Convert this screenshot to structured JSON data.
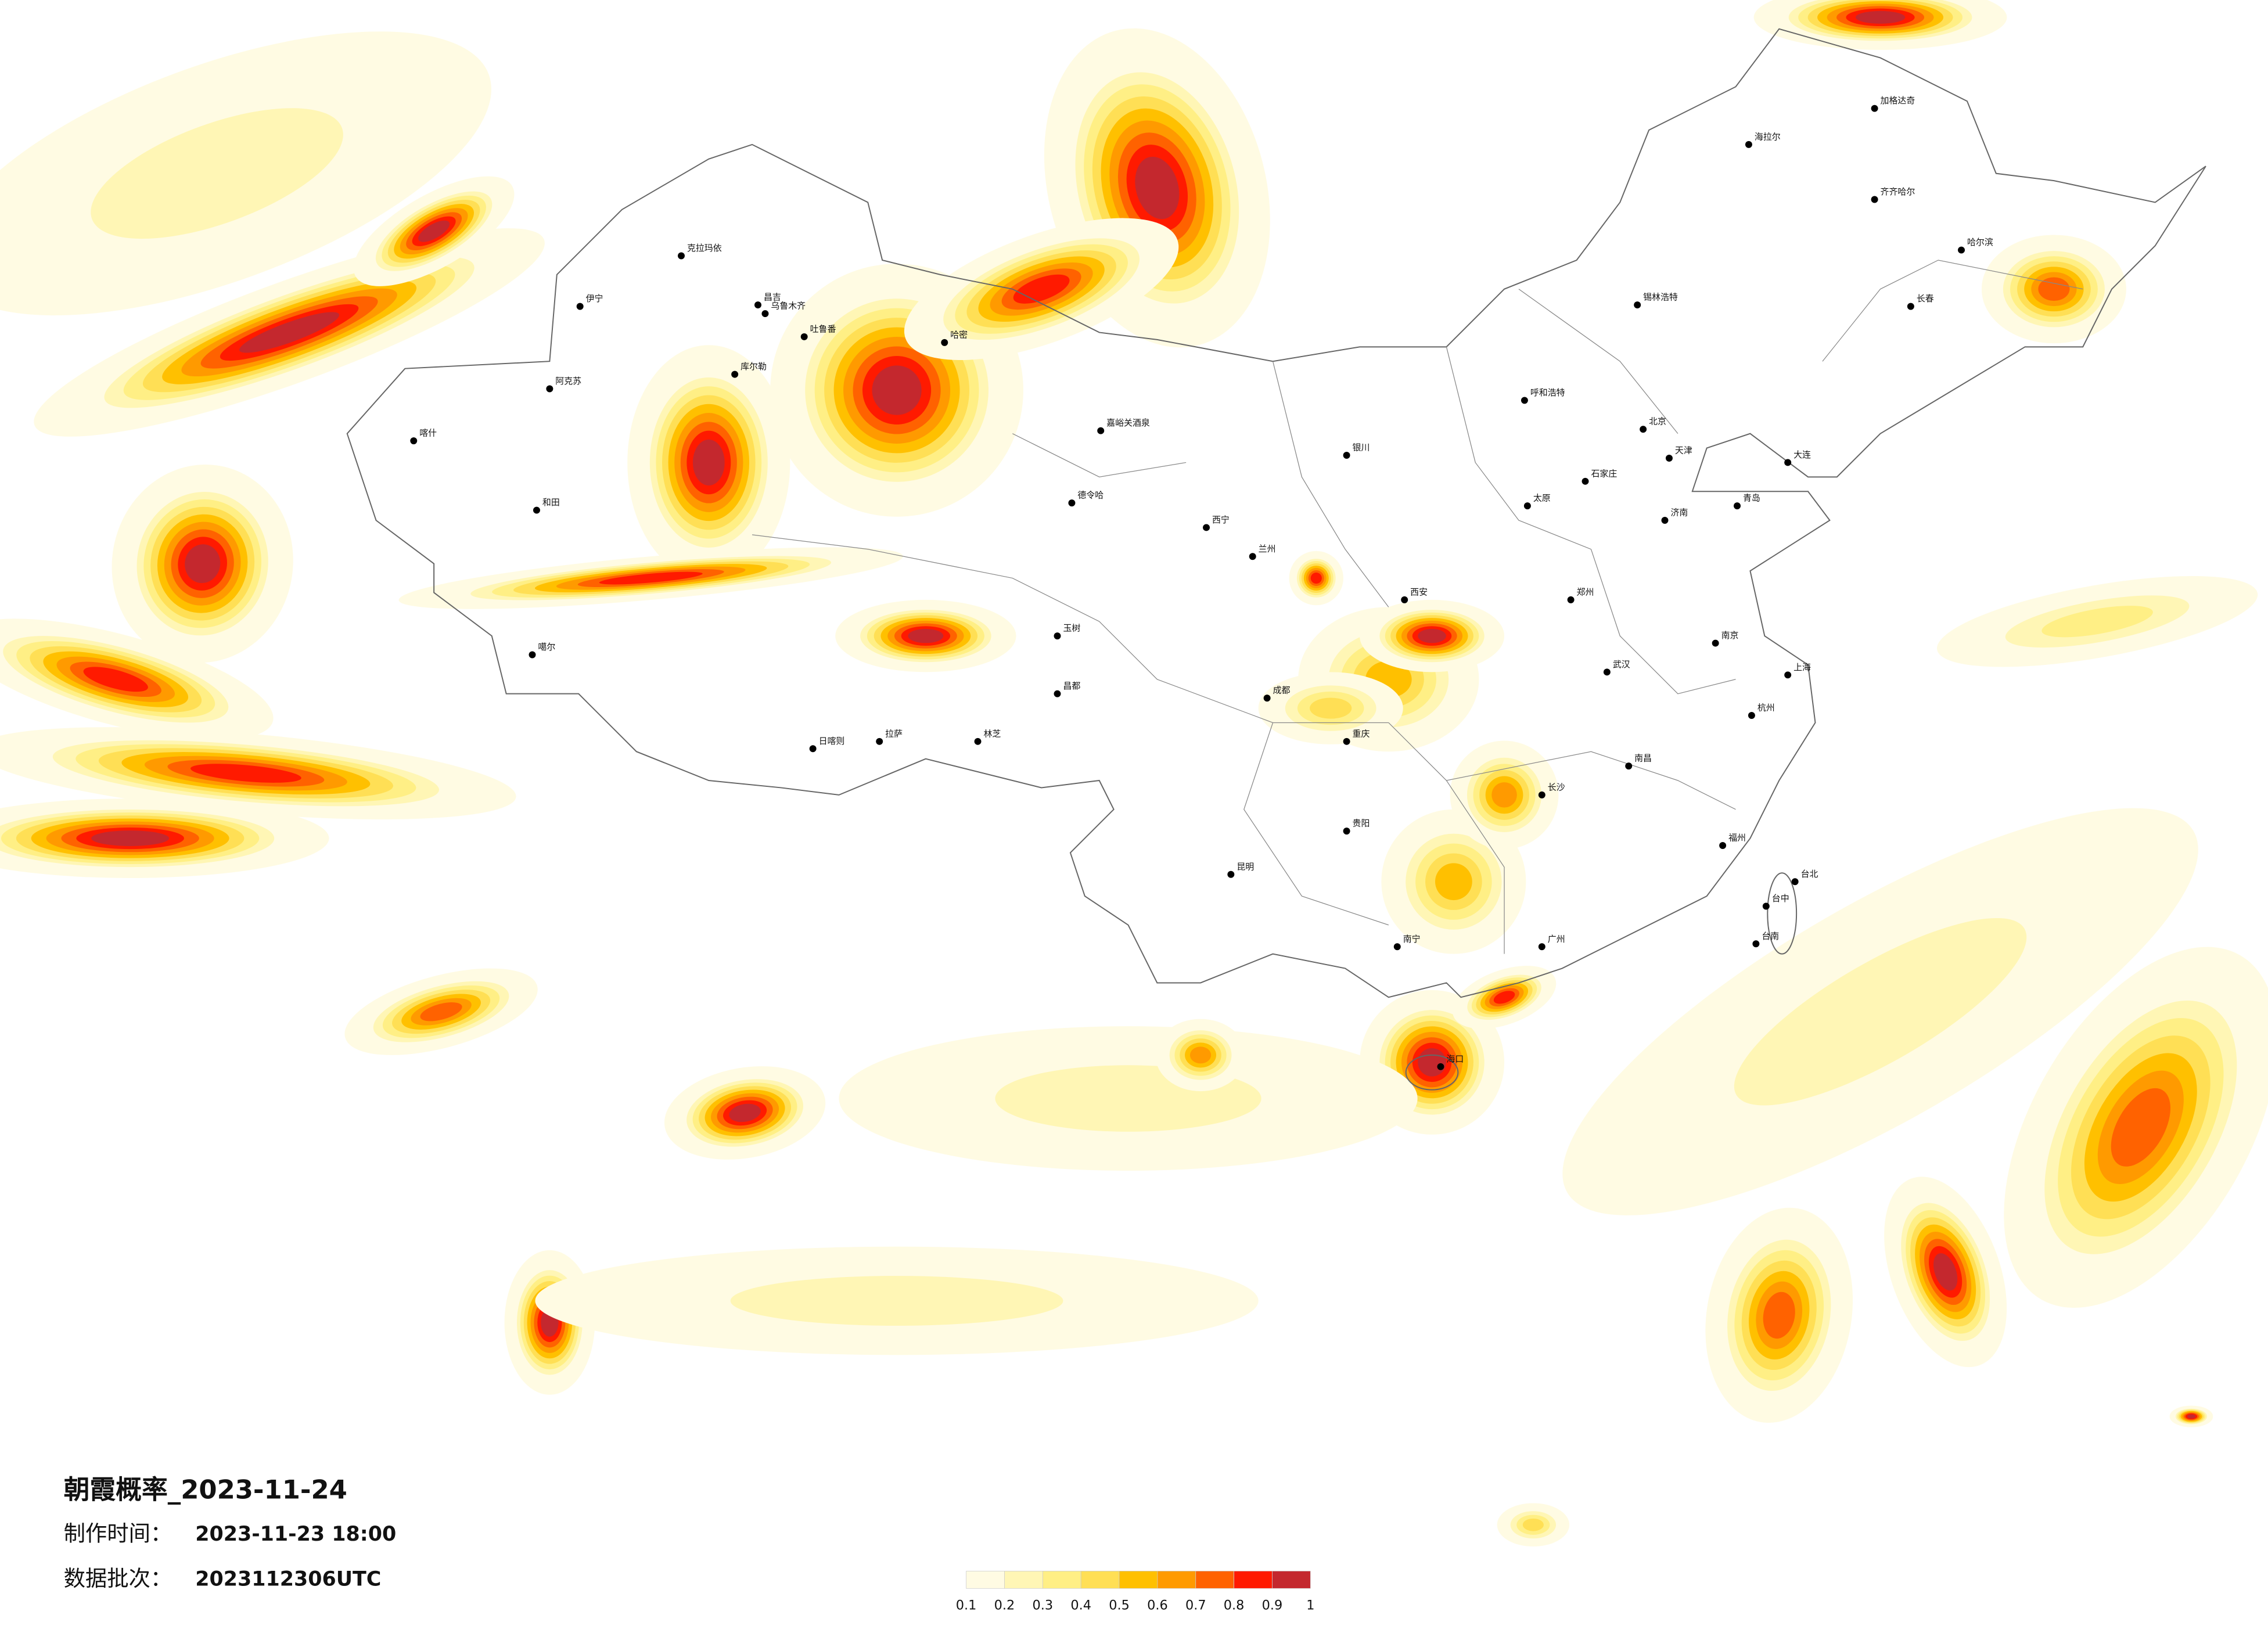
{
  "title": "朝霞概率_2023-11-24",
  "production_time": {
    "label": "制作时间：",
    "value": "2023-11-23 18:00"
  },
  "batch": {
    "label": "数据批次：",
    "value": "2023112306UTC"
  },
  "legend": {
    "colors": [
      "#fffbe3",
      "#fff6b5",
      "#ffef85",
      "#ffdf55",
      "#ffc000",
      "#ff9a00",
      "#ff6200",
      "#ff1a00",
      "#c4282e"
    ],
    "ticks": [
      0.1,
      0.2,
      0.3,
      0.4,
      0.5,
      0.6,
      0.7,
      0.8,
      0.9,
      1
    ]
  },
  "cities": [
    "克拉玛依",
    "伊宁",
    "昌吉",
    "乌鲁木齐",
    "吐鲁番",
    "哈密",
    "库尔勒",
    "阿克苏",
    "喀什",
    "和田",
    "噶尔",
    "日喀则",
    "拉萨",
    "林芝",
    "昌都",
    "玉树",
    "嘉峪关酒泉",
    "德令哈",
    "西宁",
    "兰州",
    "银川",
    "呼和浩特",
    "海拉尔",
    "加格达奇",
    "齐齐哈尔",
    "哈尔滨",
    "长春",
    "锡林浩特",
    "北京",
    "天津",
    "石家庄",
    "太原",
    "济南",
    "郑州",
    "西安",
    "成都",
    "重庆",
    "武汉",
    "南京",
    "上海",
    "杭州",
    "长沙",
    "南昌",
    "福州",
    "贵阳",
    "昆明",
    "南宁",
    "广州",
    "海口",
    "台北",
    "台中",
    "台南",
    "青岛",
    "大连"
  ]
}
